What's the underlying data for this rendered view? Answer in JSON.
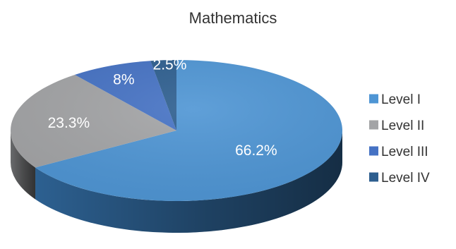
{
  "chart_data": {
    "type": "pie",
    "title": "Mathematics",
    "three_d": true,
    "legend_position": "right",
    "slices": [
      {
        "name": "Level I",
        "value": 66.2,
        "label": "66.2%",
        "color": "#4e95d4",
        "side_color": "#2f6598"
      },
      {
        "name": "Level II",
        "value": 23.3,
        "label": "23.3%",
        "color": "#a3a4a6",
        "side_color": "#6e6f71"
      },
      {
        "name": "Level III",
        "value": 8.0,
        "label": "8%",
        "color": "#4572c4",
        "side_color": "#2c4b86"
      },
      {
        "name": "Level IV",
        "value": 2.5,
        "label": "2.5%",
        "color": "#2d5e8f",
        "side_color": "#1b3a5a"
      }
    ]
  }
}
